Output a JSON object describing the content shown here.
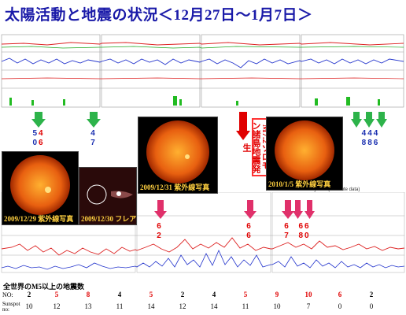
{
  "title": "太陽活動と地震の状況＜12月27日～1月7日＞",
  "colors": {
    "title": "#1a1aa8",
    "accent": "#e00000",
    "arrow_green": "#2db34a",
    "arrow_magenta": "#e0306a",
    "blue": "#1a2fb0"
  },
  "quake_label": "M7.2ソロモン諸島地震発生",
  "upper_arrows": [
    {
      "top": "5",
      "bottom": "0",
      "top2": "4",
      "bottom2": "6"
    },
    {
      "top": "4",
      "bottom": "7"
    },
    {
      "top": "4",
      "bottom": "8",
      "top2": "4",
      "bottom2": "8",
      "top3": "4",
      "bottom3": "6"
    }
  ],
  "lower_arrows": [
    {
      "top": "6",
      "bottom": "2"
    },
    {
      "top": "6",
      "bottom": "6"
    },
    {
      "top": "6",
      "bottom": "7"
    },
    {
      "top": "6",
      "bottom": "8"
    },
    {
      "top": "6",
      "bottom": "0"
    }
  ],
  "xray_label": "Xray Flux (5 minute data)",
  "sun_images": [
    {
      "caption": "2009/12/29 紫外線写真"
    },
    {
      "caption": "2009/12/30 フレア"
    },
    {
      "caption": "2009/12/31 紫外線写真"
    },
    {
      "caption": "2010/1/5 紫外線写真"
    }
  ],
  "table": {
    "title": "全世界のM5以上の地震数",
    "no_label": "NO:",
    "sunspot_label": "Sunspot no:",
    "no_values": [
      "2",
      "5",
      "8",
      "4",
      "5",
      "2",
      "4",
      "5",
      "9",
      "10",
      "6",
      "2"
    ],
    "no_colors": [
      "#000000",
      "#e00000",
      "#e00000",
      "#000000",
      "#e00000",
      "#000000",
      "#000000",
      "#e00000",
      "#e00000",
      "#e00000",
      "#e00000",
      "#000000"
    ],
    "sunspot_values": [
      "10",
      "12",
      "13",
      "11",
      "14",
      "12",
      "14",
      "11",
      "10",
      "7",
      "0",
      "0"
    ]
  }
}
